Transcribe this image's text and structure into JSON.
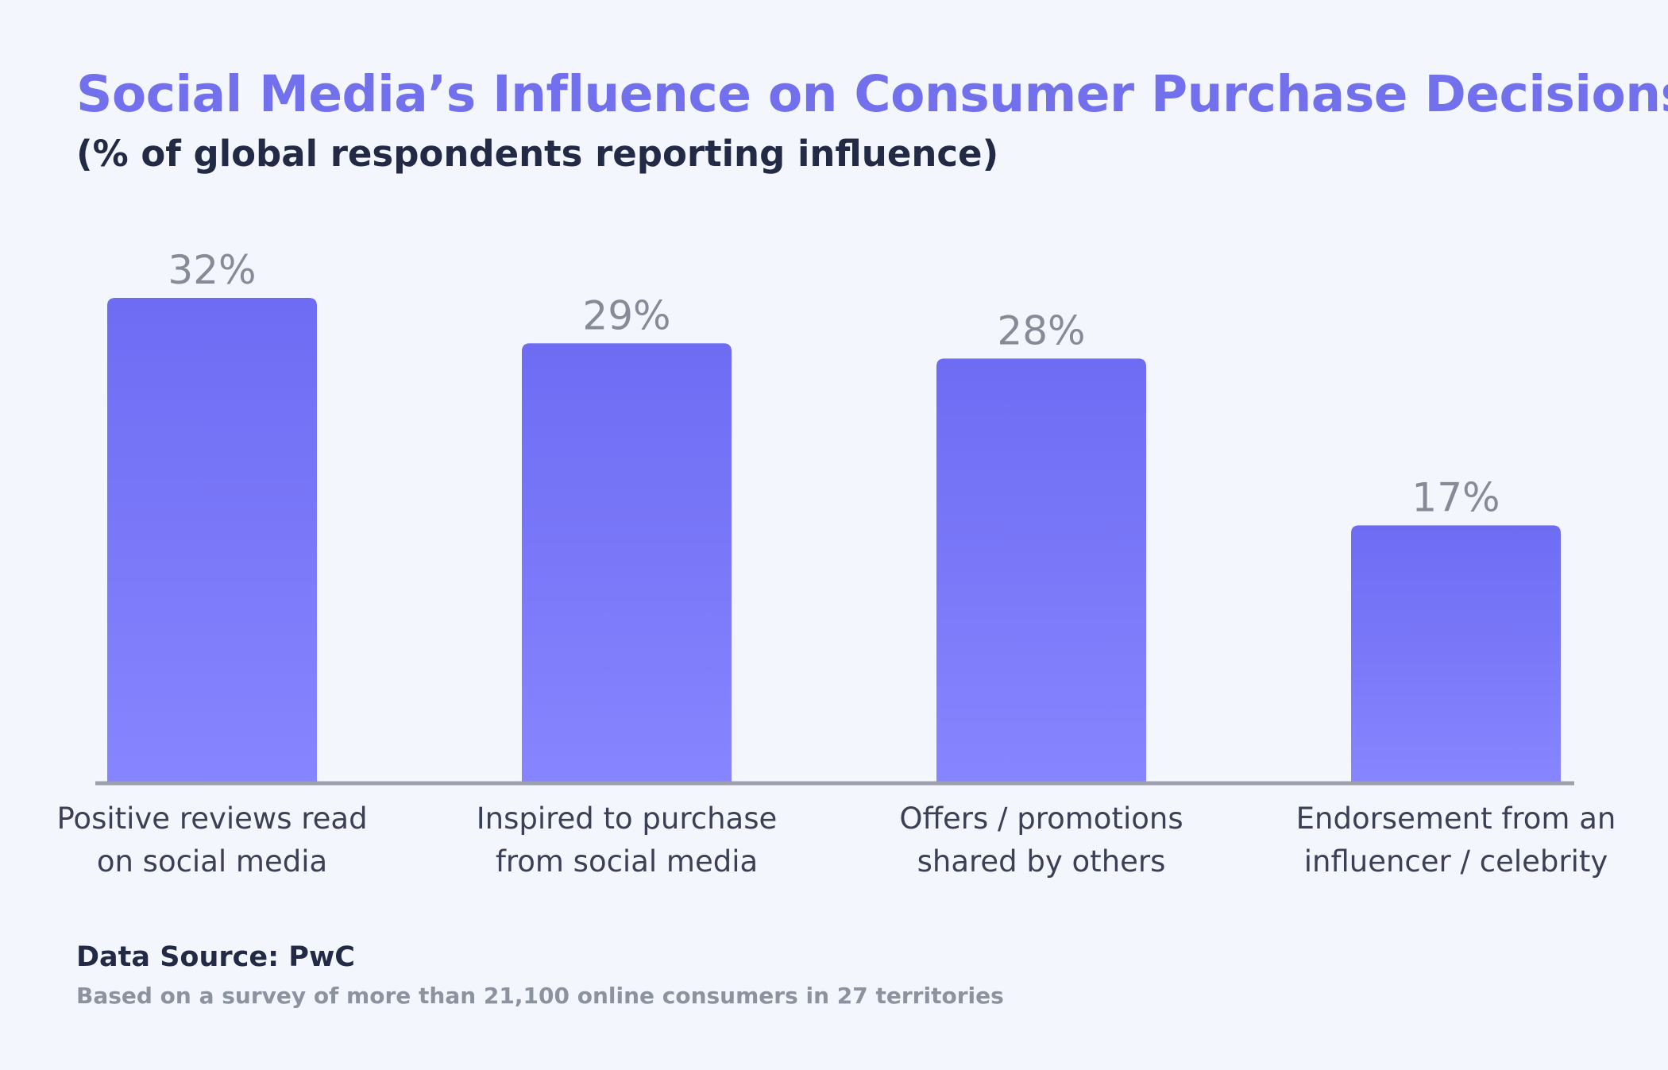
{
  "header": {
    "title": "Social Media’s Influence on Consumer Purchase Decisions",
    "subtitle": "(% of global respondents reporting influence)"
  },
  "footer": {
    "source": "Data Source: PwC",
    "note": "Based on a survey of more than 21,100 online consumers in 27 territories"
  },
  "colors": {
    "bar_top": "#6e6cf3",
    "bar_bottom": "#8785fe",
    "title": "#7370ee",
    "value_label": "#868b97",
    "axis": "#9ca0ae",
    "category_label": "#3b4055"
  },
  "chart_data": {
    "type": "bar",
    "title": "Social Media’s Influence on Consumer Purchase Decisions",
    "subtitle": "(% of global respondents reporting influence)",
    "categories": [
      [
        "Positive reviews read",
        "on social media"
      ],
      [
        "Inspired to purchase",
        "from social media"
      ],
      [
        "Offers / promotions",
        "shared by others"
      ],
      [
        "Endorsement from an",
        "influencer / celebrity"
      ]
    ],
    "values": [
      32,
      29,
      28,
      17
    ],
    "value_labels": [
      "32%",
      "29%",
      "28%",
      "17%"
    ],
    "unit": "%",
    "ylim": [
      0,
      32
    ],
    "grid": false,
    "legend": "none"
  }
}
